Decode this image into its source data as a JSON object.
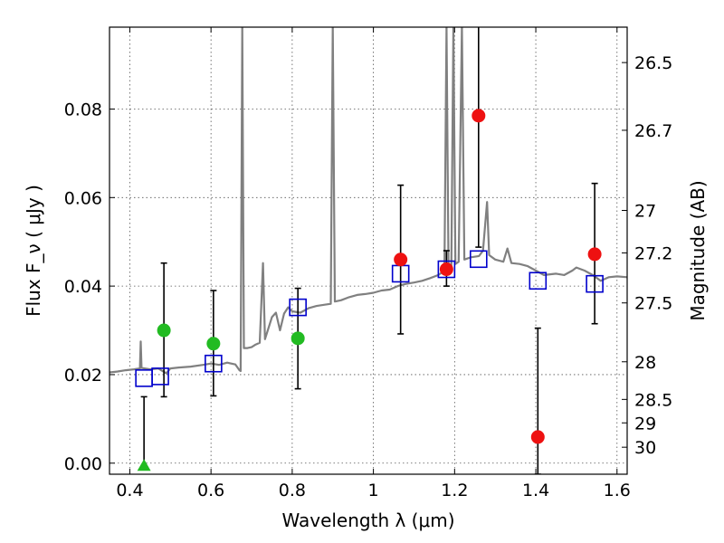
{
  "chart_data": {
    "type": "scatter",
    "xlabel": "Wavelength  λ (μm)",
    "ylabel": "Flux  F_ν  ( μJy )",
    "ylabel_right": "Magnitude (AB)",
    "xlim": [
      0.35,
      1.625
    ],
    "ylim": [
      -0.0025,
      0.0985
    ],
    "grid": true,
    "x_ticks": [
      0.4,
      0.6,
      0.8,
      1.0,
      1.2,
      1.4,
      1.6
    ],
    "x_tick_labels": [
      "0.4",
      "0.6",
      "0.8",
      "1",
      "1.2",
      "1.4",
      "1.6"
    ],
    "y_ticks": [
      0.0,
      0.02,
      0.04,
      0.06,
      0.08
    ],
    "y_tick_labels": [
      "0.00",
      "0.02",
      "0.04",
      "0.06",
      "0.08"
    ],
    "mag_ticks": [
      {
        "label": "26.5",
        "flux": 0.0905
      },
      {
        "label": "26.7",
        "flux": 0.0752
      },
      {
        "label": "27",
        "flux": 0.0571
      },
      {
        "label": "27.2",
        "flux": 0.0475
      },
      {
        "label": "27.5",
        "flux": 0.0362
      },
      {
        "label": "28",
        "flux": 0.0229
      },
      {
        "label": "28.5",
        "flux": 0.0144
      },
      {
        "label": "29",
        "flux": 0.0091
      },
      {
        "label": "30",
        "flux": 0.0036
      }
    ],
    "series": [
      {
        "name": "Green detections",
        "marker": "filled-circle",
        "color": "#22bb22",
        "points": [
          {
            "x": 0.484,
            "y": 0.03
          },
          {
            "x": 0.606,
            "y": 0.027
          },
          {
            "x": 0.814,
            "y": 0.0282
          }
        ]
      },
      {
        "name": "Red detections",
        "marker": "filled-circle",
        "color": "#ee1111",
        "points": [
          {
            "x": 1.067,
            "y": 0.046
          },
          {
            "x": 1.18,
            "y": 0.0438
          },
          {
            "x": 1.259,
            "y": 0.0785
          },
          {
            "x": 1.405,
            "y": 0.0059
          },
          {
            "x": 1.545,
            "y": 0.0472
          }
        ]
      },
      {
        "name": "Upper limit",
        "marker": "triangle",
        "color": "#22bb22",
        "points": [
          {
            "x": 0.435,
            "y": -0.0005
          }
        ]
      },
      {
        "name": "Model photometry",
        "marker": "open-square",
        "color": "#0000cc",
        "points": [
          {
            "x": 0.435,
            "y": 0.0192
          },
          {
            "x": 0.475,
            "y": 0.0196
          },
          {
            "x": 0.606,
            "y": 0.0225
          },
          {
            "x": 0.814,
            "y": 0.0352
          },
          {
            "x": 1.067,
            "y": 0.0428
          },
          {
            "x": 1.18,
            "y": 0.0438
          },
          {
            "x": 1.259,
            "y": 0.0461
          },
          {
            "x": 1.405,
            "y": 0.0412
          },
          {
            "x": 1.545,
            "y": 0.0405
          }
        ]
      }
    ],
    "error_bars": [
      {
        "x": 0.435,
        "low": -0.0005,
        "high": 0.015
      },
      {
        "x": 0.484,
        "low": 0.015,
        "high": 0.0452
      },
      {
        "x": 0.606,
        "low": 0.0152,
        "high": 0.039
      },
      {
        "x": 0.814,
        "low": 0.0168,
        "high": 0.0395
      },
      {
        "x": 1.067,
        "low": 0.0292,
        "high": 0.0628
      },
      {
        "x": 1.18,
        "low": 0.04,
        "high": 0.048
      },
      {
        "x": 1.259,
        "low": 0.0488,
        "high": 0.099
      },
      {
        "x": 1.405,
        "low": -0.0025,
        "high": 0.0305
      },
      {
        "x": 1.545,
        "low": 0.0315,
        "high": 0.0632
      }
    ],
    "spectrum": {
      "name": "Template SED",
      "color": "#808080",
      "points": [
        [
          0.35,
          0.0205
        ],
        [
          0.37,
          0.0207
        ],
        [
          0.39,
          0.021
        ],
        [
          0.41,
          0.0212
        ],
        [
          0.425,
          0.0214
        ],
        [
          0.427,
          0.0275
        ],
        [
          0.429,
          0.0215
        ],
        [
          0.45,
          0.0212
        ],
        [
          0.47,
          0.0214
        ],
        [
          0.49,
          0.0203
        ],
        [
          0.5,
          0.0214
        ],
        [
          0.52,
          0.0216
        ],
        [
          0.55,
          0.0218
        ],
        [
          0.58,
          0.0222
        ],
        [
          0.6,
          0.0225
        ],
        [
          0.62,
          0.0222
        ],
        [
          0.64,
          0.0227
        ],
        [
          0.66,
          0.0223
        ],
        [
          0.67,
          0.021
        ],
        [
          0.673,
          0.0208
        ],
        [
          0.677,
          0.0985
        ],
        [
          0.681,
          0.026
        ],
        [
          0.69,
          0.026
        ],
        [
          0.7,
          0.0262
        ],
        [
          0.71,
          0.0268
        ],
        [
          0.72,
          0.0272
        ],
        [
          0.728,
          0.0452
        ],
        [
          0.733,
          0.028
        ],
        [
          0.745,
          0.0315
        ],
        [
          0.75,
          0.033
        ],
        [
          0.76,
          0.034
        ],
        [
          0.77,
          0.03
        ],
        [
          0.78,
          0.0338
        ],
        [
          0.79,
          0.0352
        ],
        [
          0.8,
          0.0343
        ],
        [
          0.82,
          0.034
        ],
        [
          0.84,
          0.035
        ],
        [
          0.86,
          0.0355
        ],
        [
          0.88,
          0.0358
        ],
        [
          0.895,
          0.036
        ],
        [
          0.9,
          0.0985
        ],
        [
          0.905,
          0.0365
        ],
        [
          0.92,
          0.0368
        ],
        [
          0.94,
          0.0375
        ],
        [
          0.96,
          0.038
        ],
        [
          0.98,
          0.0382
        ],
        [
          1.0,
          0.0385
        ],
        [
          1.02,
          0.039
        ],
        [
          1.04,
          0.0392
        ],
        [
          1.06,
          0.04
        ],
        [
          1.08,
          0.0405
        ],
        [
          1.1,
          0.0408
        ],
        [
          1.12,
          0.0412
        ],
        [
          1.14,
          0.0418
        ],
        [
          1.16,
          0.0425
        ],
        [
          1.175,
          0.0435
        ],
        [
          1.18,
          0.0985
        ],
        [
          1.185,
          0.044
        ],
        [
          1.192,
          0.044
        ],
        [
          1.197,
          0.0985
        ],
        [
          1.202,
          0.045
        ],
        [
          1.21,
          0.0455
        ],
        [
          1.218,
          0.0985
        ],
        [
          1.224,
          0.046
        ],
        [
          1.24,
          0.0465
        ],
        [
          1.26,
          0.0468
        ],
        [
          1.27,
          0.048
        ],
        [
          1.28,
          0.059
        ],
        [
          1.285,
          0.047
        ],
        [
          1.3,
          0.046
        ],
        [
          1.32,
          0.0455
        ],
        [
          1.33,
          0.0485
        ],
        [
          1.34,
          0.0452
        ],
        [
          1.36,
          0.045
        ],
        [
          1.38,
          0.0445
        ],
        [
          1.4,
          0.0435
        ],
        [
          1.42,
          0.0425
        ],
        [
          1.45,
          0.0428
        ],
        [
          1.47,
          0.0425
        ],
        [
          1.49,
          0.0435
        ],
        [
          1.5,
          0.0442
        ],
        [
          1.52,
          0.0435
        ],
        [
          1.54,
          0.0425
        ],
        [
          1.56,
          0.0412
        ],
        [
          1.58,
          0.042
        ],
        [
          1.6,
          0.0422
        ],
        [
          1.625,
          0.042
        ]
      ]
    }
  }
}
